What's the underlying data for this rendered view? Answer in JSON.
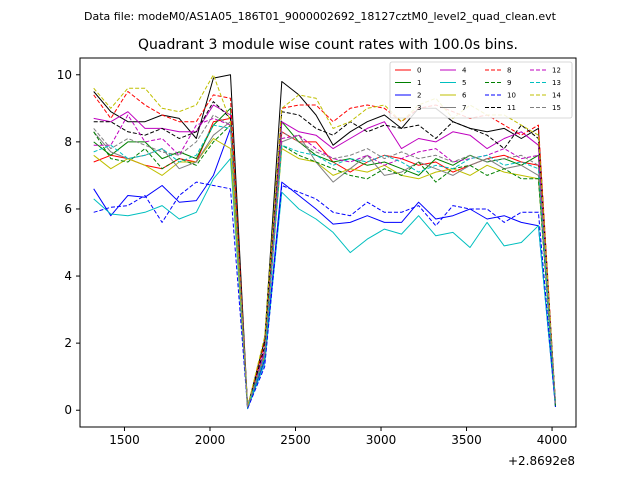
{
  "figure": {
    "suptitle": "Data file: modeM0/AS1A05_186T01_9000002692_18127cztM0_level2_quad_clean.evt",
    "offset_label": "+2.8692e8"
  },
  "chart_data": {
    "type": "line",
    "title": "Quadrant 3 module wise count rates with 100.0s bins.",
    "xlabel": "",
    "ylabel": "",
    "x_offset": 286920000,
    "xlim": [
      1240,
      4140
    ],
    "ylim": [
      -0.5,
      10.5
    ],
    "xticks": [
      1500,
      2000,
      2500,
      3000,
      3500,
      4000
    ],
    "yticks": [
      0,
      2,
      4,
      6,
      8,
      10
    ],
    "grid": false,
    "legend": {
      "placement": "top-right",
      "columns": 4
    },
    "x": [
      1320,
      1420,
      1520,
      1620,
      1720,
      1820,
      1920,
      2020,
      2120,
      2220,
      2320,
      2420,
      2520,
      2620,
      2720,
      2820,
      2920,
      3020,
      3120,
      3220,
      3320,
      3420,
      3520,
      3620,
      3720,
      3820,
      3920,
      4020
    ],
    "series": [
      {
        "name": "0",
        "color": "#ff0000",
        "dash": false,
        "values": [
          7.4,
          7.6,
          7.5,
          7.3,
          7.2,
          7.5,
          7.4,
          8.6,
          8.7,
          0.1,
          1.6,
          8.3,
          8.0,
          8.0,
          7.4,
          7.1,
          7.4,
          7.6,
          7.5,
          7.3,
          7.4,
          7.1,
          7.3,
          7.5,
          7.6,
          7.4,
          7.3,
          0.2
        ]
      },
      {
        "name": "1",
        "color": "#008000",
        "dash": false,
        "values": [
          8.0,
          7.6,
          8.0,
          8.0,
          7.5,
          7.7,
          7.5,
          8.5,
          9.0,
          0.1,
          1.7,
          8.6,
          8.0,
          7.6,
          7.4,
          7.5,
          7.3,
          7.4,
          7.2,
          7.0,
          7.5,
          7.3,
          7.6,
          7.4,
          7.5,
          7.3,
          7.6,
          0.2
        ]
      },
      {
        "name": "2",
        "color": "#0000ff",
        "dash": false,
        "values": [
          6.6,
          5.8,
          6.4,
          6.35,
          6.7,
          6.2,
          6.25,
          7.0,
          8.4,
          0.05,
          1.5,
          6.8,
          6.4,
          6.0,
          5.55,
          5.6,
          5.8,
          5.6,
          5.6,
          6.2,
          5.7,
          5.8,
          6.0,
          5.7,
          5.8,
          5.6,
          5.5,
          0.1
        ]
      },
      {
        "name": "3",
        "color": "#000000",
        "dash": false,
        "values": [
          9.5,
          8.9,
          8.6,
          8.6,
          8.8,
          8.7,
          8.1,
          9.9,
          10.0,
          0.1,
          2.1,
          9.8,
          9.4,
          8.8,
          7.9,
          8.3,
          8.6,
          8.8,
          8.4,
          9.0,
          9.0,
          8.6,
          8.4,
          8.3,
          8.4,
          8.1,
          8.4,
          0.1
        ]
      },
      {
        "name": "4",
        "color": "#bf00bf",
        "dash": false,
        "values": [
          8.7,
          8.6,
          8.9,
          8.4,
          8.4,
          8.3,
          8.3,
          9.1,
          8.8,
          0.1,
          1.8,
          8.6,
          8.3,
          8.2,
          7.8,
          8.1,
          8.4,
          8.6,
          7.8,
          8.1,
          8.0,
          8.3,
          8.2,
          7.8,
          8.1,
          8.3,
          7.9,
          0.2
        ]
      },
      {
        "name": "5",
        "color": "#00bfbf",
        "dash": false,
        "values": [
          6.3,
          5.85,
          5.8,
          5.9,
          6.1,
          5.7,
          5.9,
          6.9,
          7.5,
          0.05,
          1.4,
          6.5,
          6.0,
          5.7,
          5.3,
          4.7,
          5.1,
          5.4,
          5.25,
          5.8,
          5.2,
          5.3,
          4.85,
          5.6,
          4.9,
          5.0,
          5.5,
          0.1
        ]
      },
      {
        "name": "6",
        "color": "#bfbf00",
        "dash": false,
        "values": [
          7.6,
          7.2,
          7.5,
          7.3,
          7.0,
          7.4,
          7.4,
          8.1,
          7.8,
          0.1,
          1.6,
          7.8,
          7.5,
          7.4,
          7.0,
          7.2,
          7.1,
          7.3,
          7.0,
          6.9,
          7.1,
          7.2,
          7.0,
          7.3,
          7.1,
          7.0,
          6.9,
          0.2
        ]
      },
      {
        "name": "7",
        "color": "#808080",
        "dash": false,
        "values": [
          8.3,
          7.7,
          7.5,
          7.6,
          7.8,
          7.2,
          7.4,
          8.2,
          8.6,
          0.1,
          1.7,
          8.0,
          8.2,
          7.4,
          6.8,
          7.2,
          7.6,
          7.0,
          7.1,
          7.4,
          7.2,
          7.0,
          7.3,
          7.5,
          7.2,
          7.3,
          7.0,
          0.2
        ]
      },
      {
        "name": "8",
        "color": "#ff0000",
        "dash": true,
        "values": [
          9.4,
          8.7,
          9.5,
          9.1,
          8.8,
          8.6,
          8.6,
          9.4,
          9.3,
          0.1,
          2.0,
          9.0,
          9.1,
          9.1,
          8.6,
          9.0,
          9.1,
          9.0,
          8.6,
          9.0,
          9.1,
          8.9,
          8.7,
          8.8,
          8.5,
          8.2,
          8.5,
          0.2
        ]
      },
      {
        "name": "9",
        "color": "#008000",
        "dash": true,
        "values": [
          8.3,
          7.5,
          7.4,
          7.8,
          7.2,
          7.5,
          7.3,
          8.0,
          8.5,
          0.1,
          1.6,
          7.9,
          7.6,
          7.4,
          7.2,
          7.0,
          6.9,
          7.2,
          7.0,
          7.4,
          6.8,
          7.2,
          7.3,
          7.0,
          7.2,
          6.9,
          6.9,
          0.1
        ]
      },
      {
        "name": "10",
        "color": "#0000ff",
        "dash": true,
        "values": [
          5.9,
          6.05,
          6.1,
          6.4,
          5.6,
          6.4,
          6.8,
          6.7,
          6.6,
          0.05,
          1.3,
          6.7,
          6.5,
          6.3,
          5.9,
          5.8,
          6.2,
          5.9,
          5.9,
          6.1,
          5.5,
          6.1,
          6.0,
          6.0,
          5.6,
          5.9,
          5.9,
          0.1
        ]
      },
      {
        "name": "11",
        "color": "#000000",
        "dash": true,
        "values": [
          8.6,
          8.6,
          8.3,
          8.2,
          8.4,
          8.1,
          8.3,
          9.2,
          8.7,
          0.1,
          1.9,
          8.9,
          8.8,
          8.4,
          8.2,
          8.6,
          8.3,
          8.5,
          8.4,
          8.5,
          8.1,
          8.6,
          8.4,
          8.2,
          7.8,
          8.5,
          8.1,
          0.2
        ]
      },
      {
        "name": "12",
        "color": "#bf00bf",
        "dash": true,
        "values": [
          7.9,
          7.9,
          8.8,
          8.0,
          8.1,
          7.6,
          8.5,
          8.7,
          8.5,
          0.1,
          1.7,
          8.1,
          8.2,
          7.8,
          7.5,
          7.4,
          7.6,
          7.3,
          7.5,
          7.7,
          7.8,
          7.4,
          7.5,
          7.6,
          7.8,
          7.5,
          7.6,
          0.2
        ]
      },
      {
        "name": "13",
        "color": "#00bfbf",
        "dash": true,
        "values": [
          7.7,
          7.9,
          7.5,
          7.6,
          7.8,
          7.4,
          7.6,
          8.5,
          8.4,
          0.1,
          1.6,
          7.9,
          7.7,
          7.6,
          7.3,
          7.5,
          7.4,
          7.6,
          7.4,
          7.1,
          7.3,
          7.2,
          7.5,
          7.6,
          7.3,
          7.4,
          7.2,
          0.2
        ]
      },
      {
        "name": "14",
        "color": "#bfbf00",
        "dash": true,
        "values": [
          9.6,
          9.0,
          9.6,
          9.6,
          9.0,
          8.9,
          9.1,
          10.0,
          8.6,
          0.1,
          2.2,
          9.0,
          9.4,
          9.3,
          8.4,
          8.6,
          9.0,
          9.1,
          8.6,
          9.1,
          9.3,
          8.7,
          9.1,
          8.8,
          8.8,
          8.5,
          8.2,
          0.2
        ]
      },
      {
        "name": "15",
        "color": "#808080",
        "dash": true,
        "values": [
          8.4,
          7.8,
          8.1,
          7.9,
          7.7,
          7.6,
          8.0,
          8.8,
          8.5,
          0.1,
          1.7,
          8.3,
          8.0,
          7.7,
          7.5,
          7.6,
          7.8,
          7.5,
          7.7,
          7.5,
          7.6,
          7.4,
          7.6,
          7.4,
          7.5,
          7.6,
          7.3,
          0.2
        ]
      }
    ]
  }
}
